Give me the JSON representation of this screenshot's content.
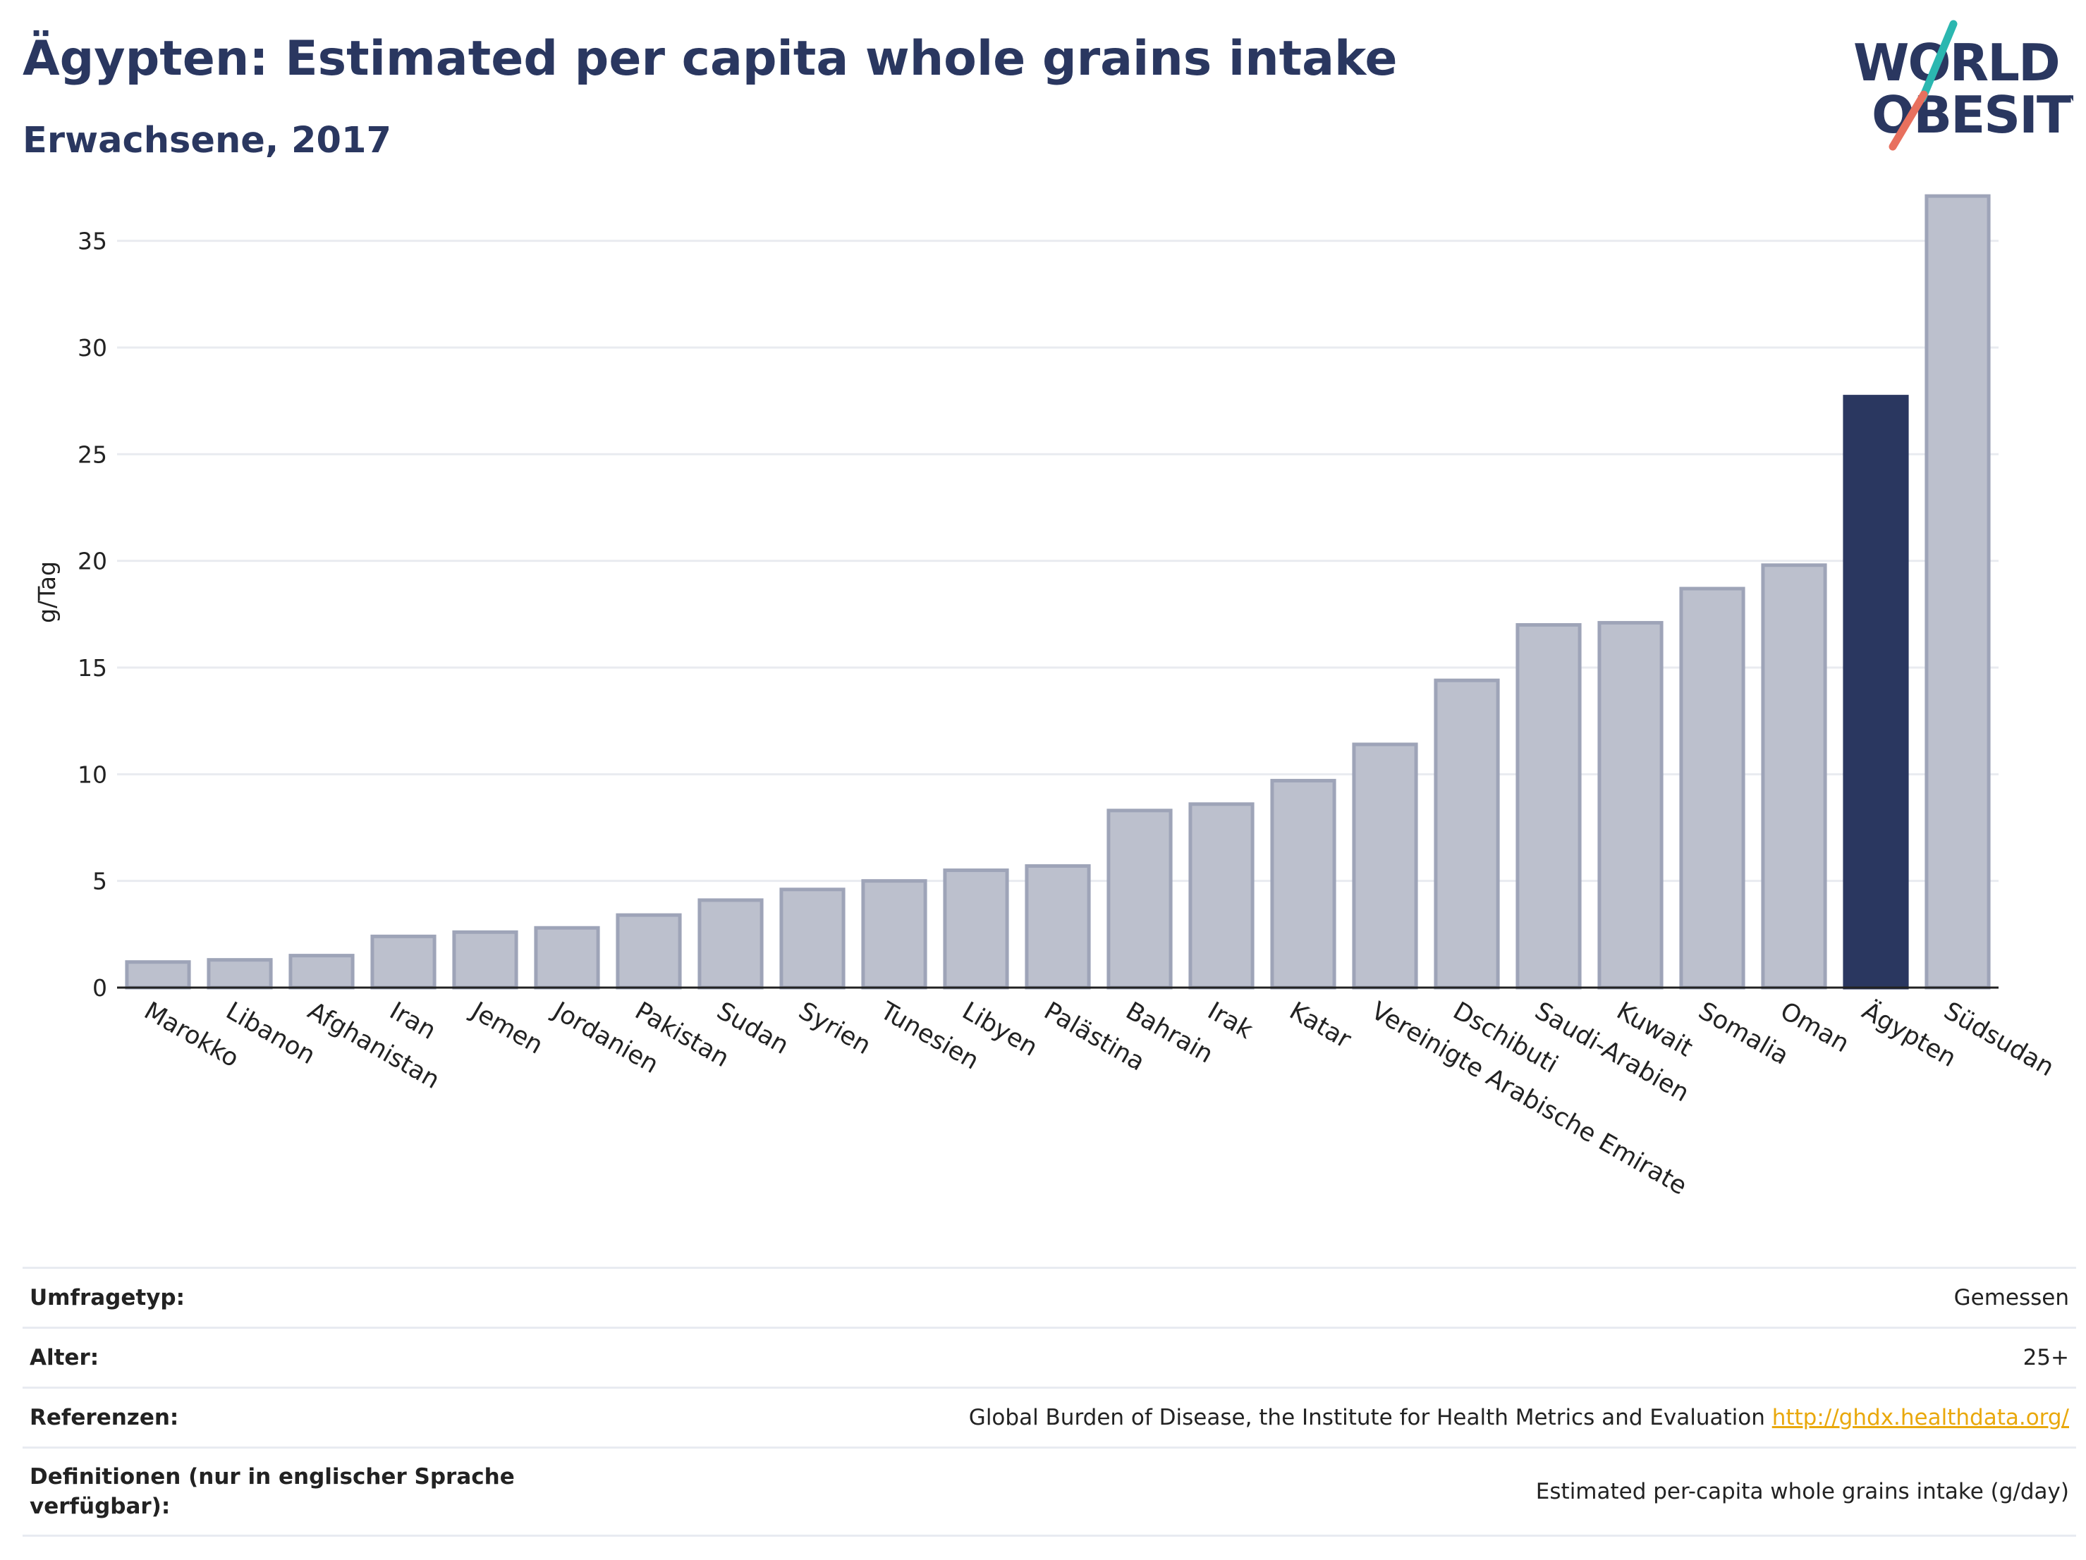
{
  "header": {
    "title": "Ägypten: Estimated per capita whole grains intake",
    "subtitle": "Erwachsene, 2017"
  },
  "logo": {
    "line1": "WORLD",
    "line2": "OBESITY",
    "color_text": "#2a3760",
    "color_teal": "#2bb7b0",
    "color_coral": "#e8705e"
  },
  "colors": {
    "bar_default": "#bcc0cd",
    "bar_default_stroke": "#9ea4b8",
    "bar_highlight": "#2a3760",
    "grid": "#e9ebf0",
    "axis": "#222222"
  },
  "chart_data": {
    "type": "bar",
    "ylabel": "g/Tag",
    "ylim": [
      0,
      37.5
    ],
    "yticks": [
      0,
      5,
      10,
      15,
      20,
      25,
      30,
      35
    ],
    "grid": true,
    "highlight": "Ägypten",
    "categories": [
      "Marokko",
      "Libanon",
      "Afghanistan",
      "Iran",
      "Jemen",
      "Jordanien",
      "Pakistan",
      "Sudan",
      "Syrien",
      "Tunesien",
      "Libyen",
      "Palästina",
      "Bahrain",
      "Irak",
      "Katar",
      "Vereinigte Arabische Emirate",
      "Dschibuti",
      "Saudi-Arabien",
      "Kuwait",
      "Somalia",
      "Oman",
      "Ägypten",
      "Südsudan"
    ],
    "values": [
      1.2,
      1.3,
      1.5,
      2.4,
      2.6,
      2.8,
      3.4,
      4.1,
      4.6,
      5.0,
      5.5,
      5.7,
      8.3,
      8.6,
      9.7,
      11.4,
      14.4,
      17.0,
      17.1,
      18.7,
      19.8,
      27.7,
      37.1
    ]
  },
  "meta": {
    "rows": [
      {
        "label": "Umfragetyp:",
        "value": "Gemessen"
      },
      {
        "label": "Alter:",
        "value": "25+"
      },
      {
        "label": "Referenzen:",
        "value": "Global Burden of Disease, the Institute for Health Metrics and Evaluation",
        "link": "http://ghdx.healthdata.org/"
      },
      {
        "label": "Definitionen (nur in englischer Sprache verfügbar):",
        "value": "Estimated per-capita whole grains intake (g/day)"
      }
    ]
  }
}
